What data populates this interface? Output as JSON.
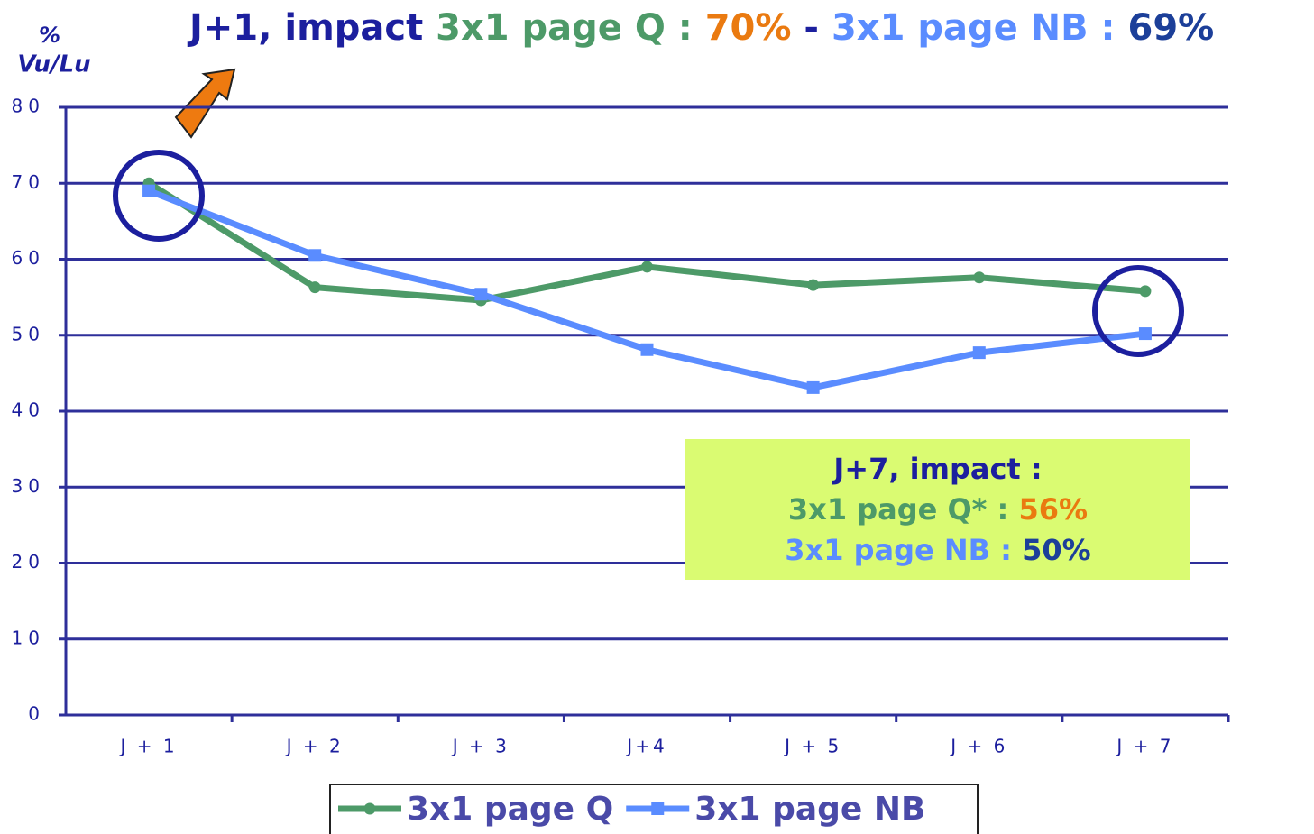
{
  "chart_data": {
    "type": "line",
    "title_parts": [
      {
        "text": "J+1, impact",
        "color": "#1c1f9e"
      },
      {
        "text": "3x1 page Q :",
        "color": "#4d9a68"
      },
      {
        "text": "70%",
        "color": "#ea7a10"
      },
      {
        "text": "-",
        "color": "#1c1f9e"
      },
      {
        "text": "3x1 page NB :",
        "color": "#5a8cff"
      },
      {
        "text": "69%",
        "color": "#1c3f99"
      }
    ],
    "y_label": [
      "%",
      "Vu/Lu"
    ],
    "categories": [
      "J + 1",
      "J + 2",
      "J + 3",
      "J+4",
      "J + 5",
      "J + 6",
      "J + 7"
    ],
    "series": [
      {
        "name": "3x1 page Q",
        "color": "#4d9a68",
        "marker": "circle",
        "values": [
          70,
          56.3,
          54.6,
          59,
          56.6,
          57.6,
          55.8
        ]
      },
      {
        "name": "3x1 page NB",
        "color": "#5a8cff",
        "marker": "square",
        "values": [
          69,
          60.5,
          55.4,
          48.1,
          43.1,
          47.7,
          50.2
        ]
      }
    ],
    "ylim": [
      0,
      80
    ],
    "yticks": [
      0,
      10,
      20,
      30,
      40,
      50,
      60,
      70,
      80
    ],
    "grid": true,
    "annotation": {
      "lines": [
        [
          {
            "text": "J+7, impact :",
            "color": "#1c1f9e"
          }
        ],
        [
          {
            "text": "3x1 page Q* :",
            "color": "#4d9a68"
          },
          {
            "text": "56%",
            "color": "#ea7a10"
          }
        ],
        [
          {
            "text": "3x1 page NB :",
            "color": "#5a8cff"
          },
          {
            "text": "50%",
            "color": "#1c3f99"
          }
        ]
      ]
    }
  }
}
